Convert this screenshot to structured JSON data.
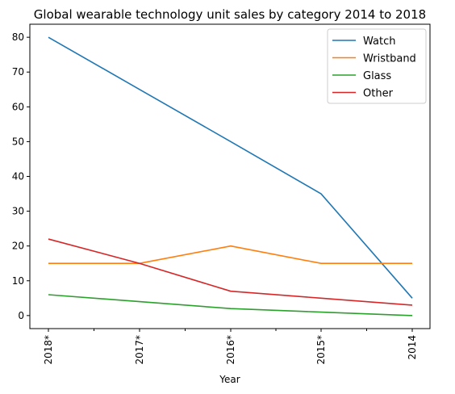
{
  "chart_data": {
    "type": "line",
    "title": "Global wearable technology unit sales by category 2014 to 2018",
    "xlabel": "Year",
    "ylabel": "",
    "categories": [
      "2018*",
      "2017*",
      "2016*",
      "2015*",
      "2014"
    ],
    "ylim": [
      -3.75,
      83.75
    ],
    "yticks": [
      0,
      10,
      20,
      30,
      40,
      50,
      60,
      70,
      80
    ],
    "grid": false,
    "legend_position": "top-right",
    "series": [
      {
        "name": "Watch",
        "color": "#1f77b4",
        "values": [
          80,
          65,
          50,
          35,
          5
        ]
      },
      {
        "name": "Wristband",
        "color": "#ff7f0e",
        "values": [
          15,
          15,
          20,
          15,
          15
        ]
      },
      {
        "name": "Glass",
        "color": "#2ca02c",
        "values": [
          6,
          4,
          2,
          1,
          0
        ]
      },
      {
        "name": "Other",
        "color": "#d62728",
        "values": [
          22,
          15,
          7,
          5,
          3
        ]
      }
    ]
  }
}
